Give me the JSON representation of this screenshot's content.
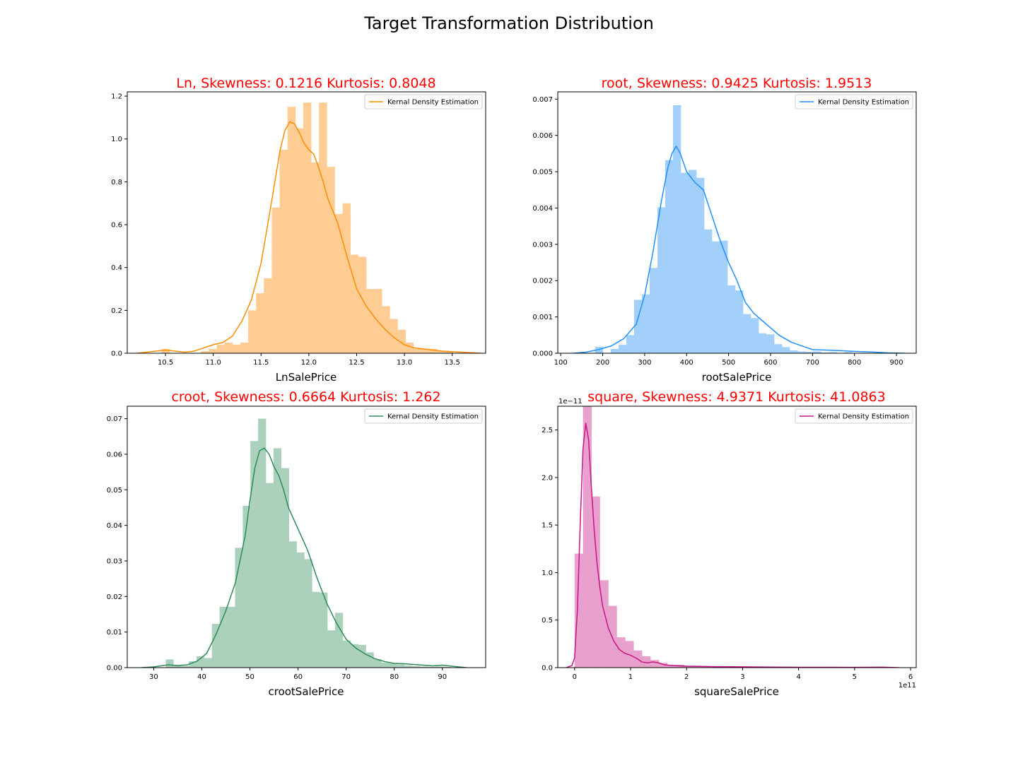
{
  "figure": {
    "suptitle": "Target Transformation Distribution",
    "title_color": "#ff0000"
  },
  "chart_data": [
    {
      "type": "histogram+kde",
      "title": "Ln, Skewness: 0.1216 Kurtosis: 0.8048",
      "xlabel": "LnSalePrice",
      "ylabel": "",
      "color": "#ff8c00",
      "bar_color": "#ffcc94",
      "legend": "Kernal Density Estimation",
      "legend_position": "top-right",
      "xlim": [
        10.1,
        13.85
      ],
      "ylim": [
        0,
        1.22
      ],
      "xticks": [
        "10.5",
        "11.0",
        "11.5",
        "12.0",
        "12.5",
        "13.0",
        "13.5"
      ],
      "xtick_values": [
        10.5,
        11.0,
        11.5,
        12.0,
        12.5,
        13.0,
        13.5
      ],
      "yticks": [
        "0.0",
        "0.2",
        "0.4",
        "0.6",
        "0.8",
        "1.0",
        "1.2"
      ],
      "ytick_values": [
        0,
        0.2,
        0.4,
        0.6,
        0.8,
        1.0,
        1.2
      ],
      "bins": {
        "start": 10.46,
        "width": 0.0823,
        "values": [
          0.02,
          0.0,
          0.0,
          0.0,
          0.0,
          0.01,
          0.02,
          0.04,
          0.05,
          0.04,
          0.05,
          0.2,
          0.28,
          0.35,
          0.68,
          0.95,
          1.15,
          1.05,
          1.17,
          0.89,
          1.17,
          0.87,
          0.65,
          0.7,
          0.46,
          0.45,
          0.3,
          0.3,
          0.22,
          0.16,
          0.11,
          0.05,
          0.02,
          0.02,
          0.02,
          0.01,
          0.01
        ]
      },
      "kde": {
        "x": [
          10.2,
          10.4,
          10.5,
          10.6,
          10.7,
          10.8,
          10.9,
          11.0,
          11.1,
          11.2,
          11.3,
          11.4,
          11.5,
          11.6,
          11.7,
          11.75,
          11.8,
          11.85,
          11.9,
          11.95,
          12.0,
          12.05,
          12.1,
          12.15,
          12.2,
          12.3,
          12.4,
          12.5,
          12.6,
          12.7,
          12.8,
          12.9,
          13.0,
          13.1,
          13.2,
          13.3,
          13.4,
          13.6,
          13.8
        ],
        "y": [
          0.0,
          0.01,
          0.015,
          0.01,
          0.005,
          0.01,
          0.025,
          0.04,
          0.05,
          0.08,
          0.15,
          0.25,
          0.42,
          0.68,
          0.95,
          1.04,
          1.08,
          1.07,
          1.03,
          0.98,
          0.95,
          0.93,
          0.87,
          0.8,
          0.72,
          0.61,
          0.45,
          0.3,
          0.22,
          0.16,
          0.11,
          0.07,
          0.04,
          0.025,
          0.02,
          0.015,
          0.01,
          0.005,
          0.0
        ]
      }
    },
    {
      "type": "histogram+kde",
      "title": "root, Skewness: 0.9425 Kurtosis: 1.9513",
      "xlabel": "rootSalePrice",
      "ylabel": "",
      "color": "#1e90ff",
      "bar_color": "#a3cffb",
      "legend": "Kernal Density Estimation",
      "legend_position": "top-right",
      "xlim": [
        93,
        947
      ],
      "ylim": [
        0,
        0.0072
      ],
      "xticks": [
        "100",
        "200",
        "300",
        "400",
        "500",
        "600",
        "700",
        "800",
        "900"
      ],
      "xtick_values": [
        100,
        200,
        300,
        400,
        500,
        600,
        700,
        800,
        900
      ],
      "yticks": [
        "0.000",
        "0.001",
        "0.002",
        "0.003",
        "0.004",
        "0.005",
        "0.006",
        "0.007"
      ],
      "ytick_values": [
        0,
        0.001,
        0.002,
        0.003,
        0.004,
        0.005,
        0.006,
        0.007
      ],
      "bins": {
        "start": 182,
        "width": 18.55,
        "values": [
          0.00018,
          0.0,
          0.00012,
          0.00023,
          0.0005,
          0.00147,
          0.00162,
          0.00235,
          0.00402,
          0.00532,
          0.00683,
          0.00497,
          0.00505,
          0.00483,
          0.00341,
          0.00308,
          0.0031,
          0.00187,
          0.00173,
          0.00108,
          0.00097,
          0.00055,
          0.00052,
          0.00025,
          0.00017,
          8e-05,
          5e-05,
          4e-05,
          5e-05,
          2e-05,
          3e-05,
          1e-05,
          3e-05,
          1e-05,
          0.0,
          0.0,
          0.0
        ]
      },
      "kde": {
        "x": [
          130,
          160,
          190,
          220,
          250,
          280,
          300,
          320,
          340,
          355,
          365,
          375,
          385,
          400,
          420,
          440,
          460,
          480,
          500,
          520,
          540,
          560,
          580,
          600,
          620,
          650,
          700,
          750,
          800,
          850,
          880,
          920
        ],
        "y": [
          0.0,
          3e-05,
          0.0001,
          0.0002,
          0.0004,
          0.0008,
          0.0016,
          0.0028,
          0.0042,
          0.0051,
          0.0055,
          0.0057,
          0.0055,
          0.005,
          0.0047,
          0.0045,
          0.0038,
          0.0031,
          0.0025,
          0.002,
          0.0014,
          0.0011,
          0.0009,
          0.0007,
          0.0005,
          0.0003,
          0.0001,
          8e-05,
          5e-05,
          3e-05,
          1e-05,
          0.0
        ]
      }
    },
    {
      "type": "histogram+kde",
      "title": "croot, Skewness: 0.6664 Kurtosis: 1.262",
      "xlabel": "crootSalePrice",
      "ylabel": "",
      "color": "#2e8b57",
      "bar_color": "#abd1bc",
      "legend": "Kernal Density Estimation",
      "legend_position": "top-right",
      "xlim": [
        24.5,
        99
      ],
      "ylim": [
        0,
        0.0735
      ],
      "xticks": [
        "30",
        "40",
        "50",
        "60",
        "70",
        "80",
        "90"
      ],
      "xtick_values": [
        30,
        40,
        50,
        60,
        70,
        80,
        90
      ],
      "yticks": [
        "0.00",
        "0.01",
        "0.02",
        "0.03",
        "0.04",
        "0.05",
        "0.06",
        "0.07"
      ],
      "ytick_values": [
        0,
        0.01,
        0.02,
        0.03,
        0.04,
        0.05,
        0.06,
        0.07
      ],
      "bins": {
        "start": 32.5,
        "width": 1.6,
        "values": [
          0.0023,
          0.0005,
          0.0005,
          0.0018,
          0.0032,
          0.0027,
          0.0123,
          0.0171,
          0.0171,
          0.0337,
          0.0455,
          0.0637,
          0.07,
          0.0519,
          0.0617,
          0.0561,
          0.0355,
          0.0324,
          0.0305,
          0.0213,
          0.0211,
          0.0105,
          0.0154,
          0.0076,
          0.0066,
          0.0064,
          0.0043,
          0.0024,
          0.0014,
          0.0012,
          0.0009,
          0.0006,
          0.0004,
          0.0003,
          0.0002,
          0.0003,
          0.0002
        ]
      },
      "kde": {
        "x": [
          27.5,
          30,
          33,
          35,
          37,
          39,
          41,
          43,
          45,
          47,
          49,
          50,
          51,
          52,
          53,
          54,
          55,
          56,
          57,
          58,
          60,
          62,
          64,
          66,
          68,
          70,
          72,
          74,
          76,
          78,
          80,
          82,
          84,
          86,
          88,
          90,
          92,
          95
        ],
        "y": [
          0.0,
          0.0002,
          0.0008,
          0.0006,
          0.0008,
          0.0018,
          0.004,
          0.0095,
          0.016,
          0.024,
          0.037,
          0.047,
          0.056,
          0.061,
          0.0617,
          0.06,
          0.0565,
          0.054,
          0.05,
          0.045,
          0.039,
          0.033,
          0.025,
          0.018,
          0.0125,
          0.008,
          0.0055,
          0.0038,
          0.0025,
          0.0017,
          0.0012,
          0.0011,
          0.0009,
          0.0007,
          0.0005,
          0.0007,
          0.0004,
          0.0
        ]
      }
    },
    {
      "type": "histogram+kde",
      "title": "square, Skewness: 4.9371 Kurtosis: 41.0863",
      "xlabel": "squareSalePrice",
      "ylabel": "",
      "color": "#c71585",
      "bar_color": "#e8a1cd",
      "legend": "Kernal Density Estimation",
      "legend_position": "top-right",
      "offset_text_y": "1e−11",
      "offset_text_x": "1e11",
      "xlim": [
        -0.3,
        6.1
      ],
      "ylim": [
        0,
        2.75
      ],
      "xticks": [
        "0",
        "1",
        "2",
        "3",
        "4",
        "5",
        "6"
      ],
      "xtick_values": [
        0,
        1,
        2,
        3,
        4,
        5,
        6
      ],
      "yticks": [
        "0.0",
        "0.5",
        "1.0",
        "1.5",
        "2.0",
        "2.5"
      ],
      "ytick_values": [
        0,
        0.5,
        1.0,
        1.5,
        2.0,
        2.5
      ],
      "bins": {
        "start": 0.0,
        "width": 0.1505,
        "values": [
          1.2,
          2.75,
          1.8,
          0.92,
          0.65,
          0.32,
          0.28,
          0.18,
          0.12,
          0.08,
          0.05,
          0.03,
          0.03,
          0.02,
          0.02,
          0.01,
          0.01,
          0.01,
          0.01,
          0.01,
          0.005,
          0.01,
          0.005,
          0.005,
          0.005,
          0.005,
          0.003,
          0.003,
          0.003,
          0.003,
          0.002,
          0.002,
          0.002,
          0.002,
          0.002,
          0.002,
          0.002,
          0.001
        ]
      },
      "kde": {
        "x": [
          -0.15,
          -0.05,
          0.0,
          0.05,
          0.1,
          0.15,
          0.2,
          0.25,
          0.3,
          0.35,
          0.4,
          0.45,
          0.5,
          0.6,
          0.7,
          0.8,
          0.9,
          1.0,
          1.1,
          1.2,
          1.3,
          1.4,
          1.5,
          1.6,
          1.8,
          2.0,
          2.5,
          3.0,
          3.5,
          4.0,
          4.5,
          5.0,
          5.5,
          5.8
        ],
        "y": [
          0.0,
          0.02,
          0.1,
          0.6,
          1.5,
          2.3,
          2.57,
          2.4,
          1.9,
          1.45,
          1.1,
          0.85,
          0.65,
          0.42,
          0.28,
          0.19,
          0.15,
          0.13,
          0.1,
          0.06,
          0.05,
          0.06,
          0.05,
          0.03,
          0.02,
          0.015,
          0.01,
          0.008,
          0.006,
          0.004,
          0.004,
          0.003,
          0.005,
          0.0
        ]
      }
    }
  ]
}
